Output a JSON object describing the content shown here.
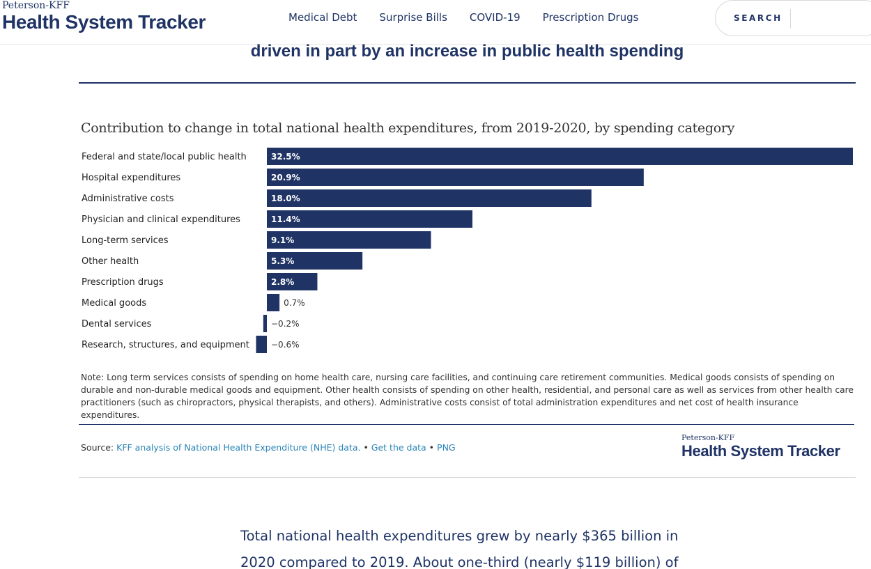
{
  "header": {
    "logo_top": "Peterson-KFF",
    "logo_main": "Health System Tracker",
    "nav": [
      "Medical Debt",
      "Surprise Bills",
      "COVID-19",
      "Prescription Drugs"
    ],
    "search_label": "SEARCH"
  },
  "chart_heading": "driven in part by an increase in public health spending",
  "chart_data": {
    "type": "bar",
    "orientation": "horizontal",
    "title": "Contribution to change in total national health expenditures, from 2019-2020, by spending category",
    "categories": [
      "Federal and state/local public health",
      "Hospital expenditures",
      "Administrative costs",
      "Physician and clinical expenditures",
      "Long-term services",
      "Other health",
      "Prescription drugs",
      "Medical goods",
      "Dental services",
      "Research, structures, and equipment"
    ],
    "values": [
      32.5,
      20.9,
      18.0,
      11.4,
      9.1,
      5.3,
      2.8,
      0.7,
      -0.2,
      -0.6
    ],
    "labels": [
      "32.5%",
      "20.9%",
      "18.0%",
      "11.4%",
      "9.1%",
      "5.3%",
      "2.8%",
      "0.7%",
      "−0.2%",
      "−0.6%"
    ],
    "bar_color": "#1f3365",
    "xlim": [
      -0.6,
      32.5
    ]
  },
  "note": "Note: Long term services consists of spending on home health care, nursing care facilities, and continuing care retirement communities. Medical goods consists of spending on durable and non-durable medical goods and equipment. Other health consists of spending on other health, residential, and personal care as well as services from other health care practitioners (such as chiropractors, physical therapists, and others). Administrative costs consist of total administration expenditures and net cost of health insurance expenditures.",
  "source": {
    "prefix": "Source: ",
    "link_analysis": "KFF analysis of National Health Expenditure (NHE) data.",
    "sep1": " • ",
    "link_data": "Get the data",
    "sep2": " • ",
    "link_png": "PNG"
  },
  "footer_logo": {
    "top": "Peterson-KFF",
    "main": "Health System Tracker"
  },
  "body_text": "Total national health expenditures grew by nearly $365 billion in 2020 compared to 2019. About one-third (nearly $119 billion) of"
}
